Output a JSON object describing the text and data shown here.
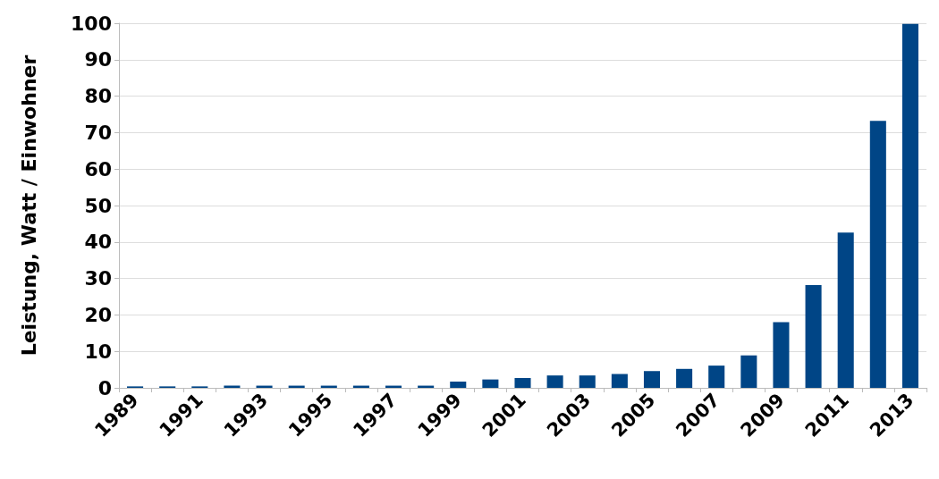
{
  "chart_data": {
    "type": "bar",
    "ylabel": "Leistung, Watt / Einwohner",
    "categories": [
      "1989",
      null,
      "1991",
      null,
      "1993",
      null,
      "1995",
      null,
      "1997",
      null,
      "1999",
      null,
      "2001",
      null,
      "2003",
      null,
      "2005",
      null,
      "2007",
      null,
      "2009",
      null,
      "2011",
      null,
      "2013"
    ],
    "values": [
      0.4,
      0.4,
      0.4,
      0.6,
      0.6,
      0.6,
      0.6,
      0.6,
      0.6,
      0.6,
      1.7,
      2.3,
      2.7,
      3.4,
      3.4,
      3.8,
      4.6,
      5.2,
      6.1,
      8.9,
      18,
      28.2,
      42.6,
      73.2,
      99.8
    ],
    "color": "#004586",
    "ylim": [
      0,
      100
    ],
    "yticks": [
      0,
      10,
      20,
      30,
      40,
      50,
      60,
      70,
      80,
      90,
      100
    ],
    "grid": "y"
  }
}
